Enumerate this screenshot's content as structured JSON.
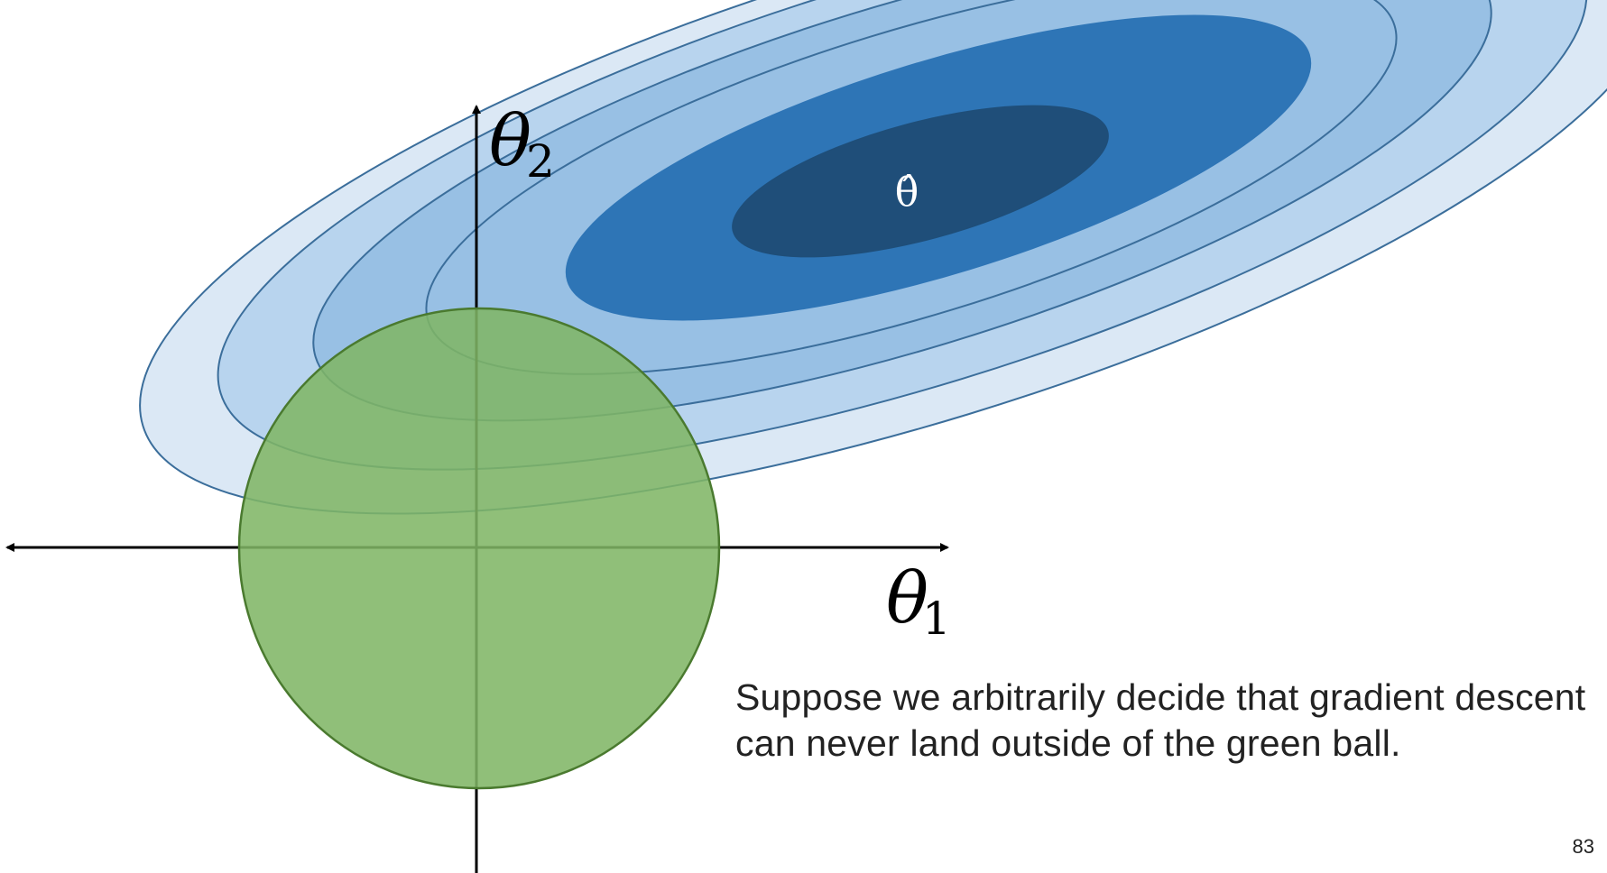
{
  "diagram": {
    "axis_labels": {
      "theta2_base": "θ",
      "theta2_sub": "2",
      "theta1_base": "θ",
      "theta1_sub": "1"
    },
    "optimum_label": "θ̂",
    "colors": {
      "contour_1": "#dbe8f5",
      "contour_2": "#b8d4ee",
      "contour_3": "#98c0e4",
      "contour_4": "#2e75b6",
      "contour_5": "#1f4e79",
      "contour_stroke": "#3b6e9b",
      "ball_fill": "#7fb565",
      "ball_stroke": "#4a7a2f",
      "axis": "#000000"
    }
  },
  "caption": {
    "line1": "Suppose we arbitrarily decide that gradient descent",
    "line2": "can never land outside of the green ball."
  },
  "page_number": "83"
}
